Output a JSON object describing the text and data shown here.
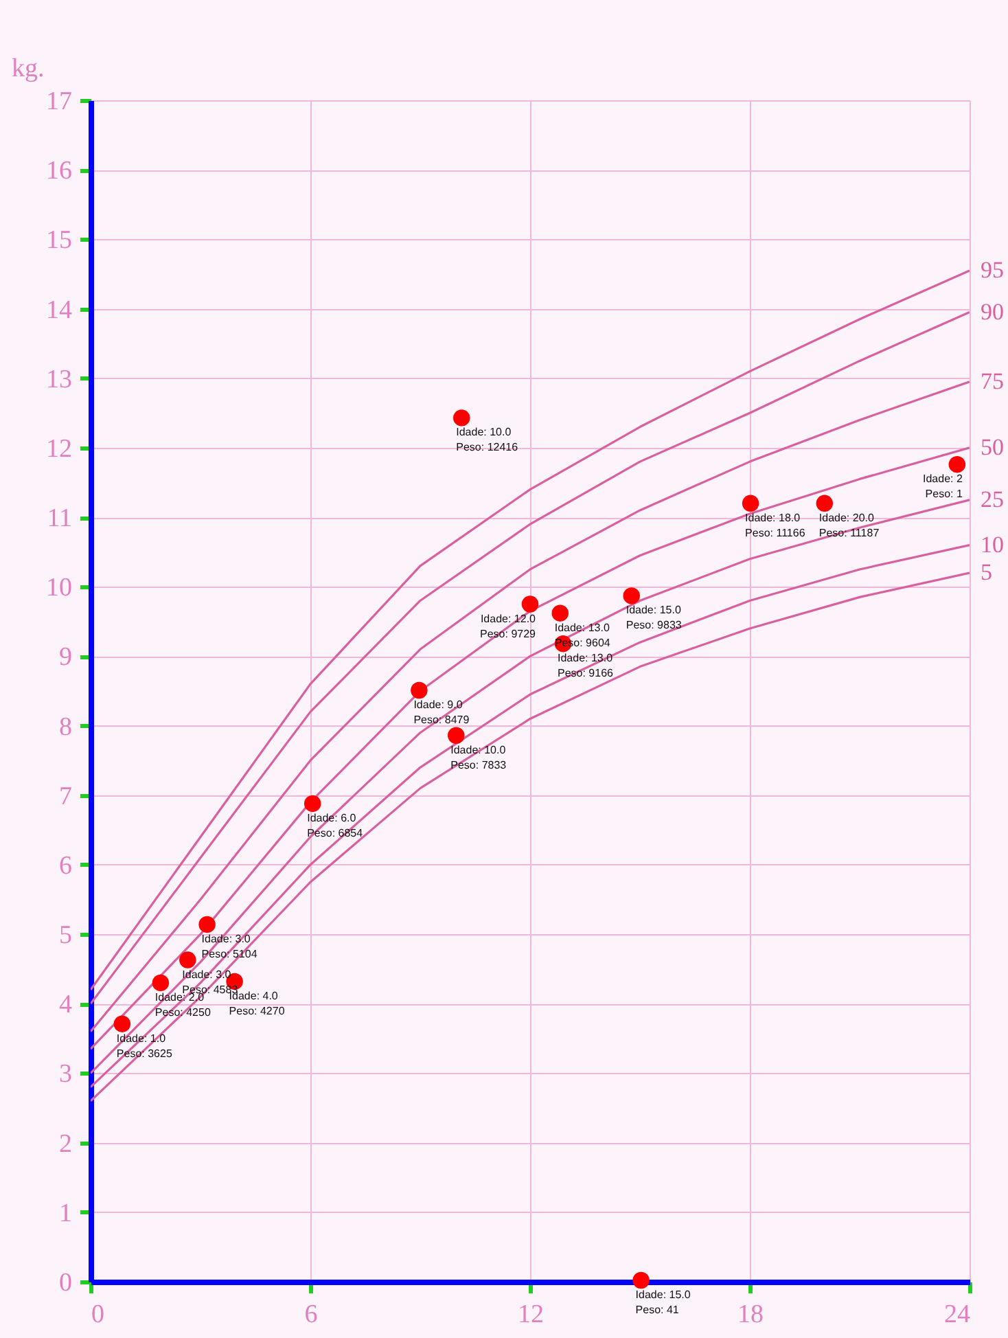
{
  "chart_data": {
    "type": "scatter",
    "ylabel": "kg.",
    "xlim": [
      0,
      24
    ],
    "ylim": [
      0,
      17
    ],
    "xticks": [
      0,
      6,
      12,
      18,
      24
    ],
    "yticks": [
      0,
      1,
      2,
      3,
      4,
      5,
      6,
      7,
      8,
      9,
      10,
      11,
      12,
      13,
      14,
      15,
      16,
      17
    ],
    "grid": true,
    "series": [
      {
        "type": "line",
        "name": "95",
        "color": "#d9609f",
        "x": [
          0,
          3,
          6,
          9,
          12,
          15,
          18,
          21,
          24
        ],
        "values": [
          4.2,
          6.4,
          8.6,
          10.3,
          11.4,
          12.3,
          13.1,
          13.85,
          14.55
        ]
      },
      {
        "type": "line",
        "name": "90",
        "color": "#d9609f",
        "x": [
          0,
          3,
          6,
          9,
          12,
          15,
          18,
          21,
          24
        ],
        "values": [
          4.0,
          6.1,
          8.2,
          9.8,
          10.9,
          11.8,
          12.5,
          13.25,
          13.95
        ]
      },
      {
        "type": "line",
        "name": "75",
        "color": "#d9609f",
        "x": [
          0,
          3,
          6,
          9,
          12,
          15,
          18,
          21,
          24
        ],
        "values": [
          3.6,
          5.5,
          7.5,
          9.1,
          10.25,
          11.1,
          11.8,
          12.4,
          12.95
        ]
      },
      {
        "type": "line",
        "name": "50",
        "color": "#d9609f",
        "x": [
          0,
          3,
          6,
          9,
          12,
          15,
          18,
          21,
          24
        ],
        "values": [
          3.35,
          5.0,
          6.9,
          8.5,
          9.65,
          10.45,
          11.05,
          11.55,
          12.0
        ]
      },
      {
        "type": "line",
        "name": "25",
        "color": "#d9609f",
        "x": [
          0,
          3,
          6,
          9,
          12,
          15,
          18,
          21,
          24
        ],
        "values": [
          3.0,
          4.6,
          6.4,
          7.9,
          9.0,
          9.8,
          10.4,
          10.85,
          11.25
        ]
      },
      {
        "type": "line",
        "name": "10",
        "color": "#d9609f",
        "x": [
          0,
          3,
          6,
          9,
          12,
          15,
          18,
          21,
          24
        ],
        "values": [
          2.8,
          4.3,
          6.0,
          7.4,
          8.45,
          9.2,
          9.8,
          10.25,
          10.6
        ]
      },
      {
        "type": "line",
        "name": "5",
        "color": "#d9609f",
        "x": [
          0,
          3,
          6,
          9,
          12,
          15,
          18,
          21,
          24
        ],
        "values": [
          2.6,
          4.1,
          5.75,
          7.1,
          8.1,
          8.85,
          9.4,
          9.85,
          10.2
        ]
      },
      {
        "type": "scatter",
        "marker": "circle",
        "color": "#ff0000",
        "x": [
          0.86,
          1.91,
          2.65,
          3.18,
          3.93,
          6.06,
          8.97,
          9.98,
          10.13,
          12.0,
          12.82,
          12.9,
          14.77,
          18.02,
          20.04,
          23.66,
          15.03
        ],
        "values": [
          3.71,
          4.3,
          4.63,
          5.14,
          4.32,
          6.88,
          8.51,
          7.86,
          12.43,
          9.75,
          9.62,
          9.18,
          9.87,
          11.2,
          11.2,
          11.76,
          0.02
        ]
      }
    ],
    "annotations": [
      {
        "text": "Idade: 1.0\nPeso: 3625",
        "x": 0.86,
        "y": 3.71
      },
      {
        "text": "Idade: 2.0\nPeso: 4250",
        "x": 1.91,
        "y": 4.3
      },
      {
        "text": "Idade: 3.0\nPeso: 4583",
        "x": 2.65,
        "y": 4.63
      },
      {
        "text": "Idade: 3.0\nPeso: 5104",
        "x": 3.18,
        "y": 5.14
      },
      {
        "text": "Idade: 4.0\nPeso: 4270",
        "x": 3.93,
        "y": 4.32
      },
      {
        "text": "Idade: 6.0\nPeso: 6854",
        "x": 6.06,
        "y": 6.88
      },
      {
        "text": "Idade: 9.0\nPeso: 8479",
        "x": 8.97,
        "y": 8.51
      },
      {
        "text": "Idade: 10.0\nPeso: 7833",
        "x": 9.98,
        "y": 7.86
      },
      {
        "text": "Idade: 10.0\nPeso: 12416",
        "x": 10.13,
        "y": 12.43
      },
      {
        "text": "Idade: 12.0\nPeso: 9729",
        "x": 12.0,
        "y": 9.75
      },
      {
        "text": "Idade: 13.0\nPeso: 9604",
        "x": 12.82,
        "y": 9.62
      },
      {
        "text": "Idade: 13.0\nPeso: 9166",
        "x": 12.9,
        "y": 9.18
      },
      {
        "text": "Idade: 15.0\nPeso: 9833",
        "x": 14.77,
        "y": 9.87
      },
      {
        "text": "Idade: 18.0\nPeso: 11166",
        "x": 18.02,
        "y": 11.2
      },
      {
        "text": "Idade: 20.0\nPeso: 11187",
        "x": 20.04,
        "y": 11.2
      },
      {
        "text": "Idade: 2\nPeso: 1",
        "x": 23.66,
        "y": 11.76
      },
      {
        "text": "Idade: 15.0\nPeso: 41",
        "x": 15.03,
        "y": 0.02
      }
    ]
  }
}
